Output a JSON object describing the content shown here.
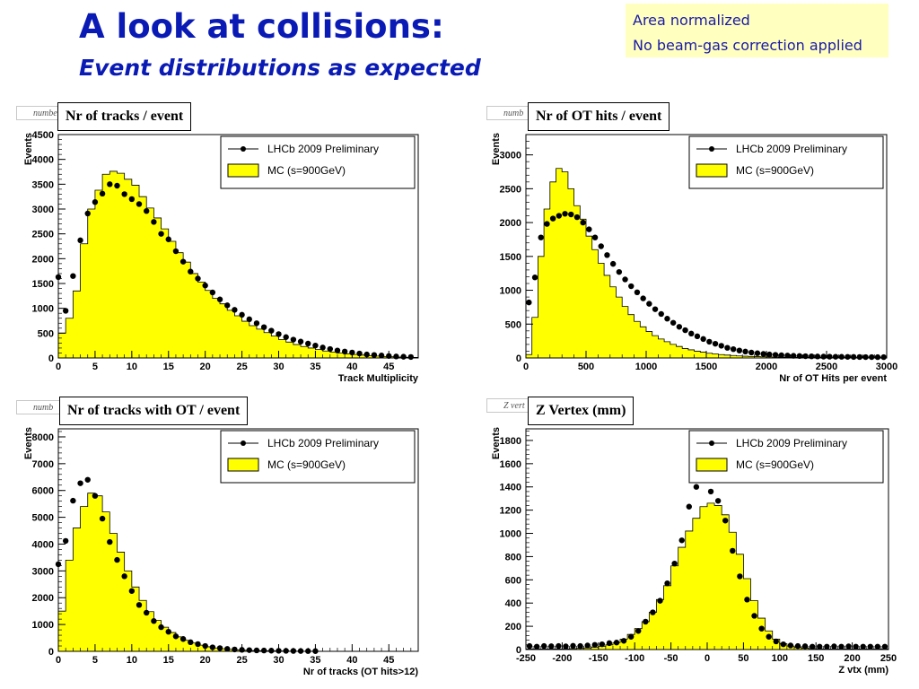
{
  "slide": {
    "title": "A look at collisions:",
    "subtitle": "Event distributions as expected",
    "notes": [
      "Area normalized",
      "No beam-gas correction applied"
    ]
  },
  "colors": {
    "title": "#0a1ab4",
    "mc_fill": "#ffff00",
    "data_marker": "#000000",
    "note_bg": "#ffffc0"
  },
  "chart_data": [
    {
      "type": "bar",
      "panel_label": "Nr of tracks / event",
      "stat_tab": "number",
      "xlabel": "Track Multiplicity",
      "ylabel": "Events",
      "xlim": [
        0,
        49
      ],
      "ylim": [
        0,
        4500
      ],
      "xticks": [
        0,
        5,
        10,
        15,
        20,
        25,
        30,
        35,
        40,
        45
      ],
      "yticks": [
        0,
        500,
        1000,
        1500,
        2000,
        2500,
        3000,
        3500,
        4000,
        4500
      ],
      "legend_position": "top-right",
      "series": [
        {
          "name": "LHCb 2009 Preliminary",
          "kind": "markers",
          "x": [
            0,
            1,
            2,
            3,
            4,
            5,
            6,
            7,
            8,
            9,
            10,
            11,
            12,
            13,
            14,
            15,
            16,
            17,
            18,
            19,
            20,
            21,
            22,
            23,
            24,
            25,
            26,
            27,
            28,
            29,
            30,
            31,
            32,
            33,
            34,
            35,
            36,
            37,
            38,
            39,
            40,
            41,
            42,
            43,
            44,
            45,
            46,
            47,
            48
          ],
          "y": [
            1630,
            950,
            1650,
            2370,
            2910,
            3140,
            3310,
            3500,
            3470,
            3300,
            3200,
            3100,
            2960,
            2740,
            2500,
            2390,
            2150,
            1940,
            1740,
            1600,
            1460,
            1320,
            1180,
            1060,
            970,
            870,
            780,
            700,
            620,
            550,
            480,
            420,
            370,
            330,
            290,
            250,
            210,
            180,
            150,
            130,
            110,
            90,
            70,
            60,
            50,
            40,
            30,
            25,
            20
          ]
        },
        {
          "name": "MC (s=900GeV)",
          "kind": "histogram",
          "edges": [
            0,
            1,
            2,
            3,
            4,
            5,
            6,
            7,
            8,
            9,
            10,
            11,
            12,
            13,
            14,
            15,
            16,
            17,
            18,
            19,
            20,
            21,
            22,
            23,
            24,
            25,
            26,
            27,
            28,
            29,
            30,
            31,
            32,
            33,
            34,
            35,
            36,
            37,
            38,
            39,
            40,
            41,
            42,
            43,
            44,
            45,
            46,
            47,
            48,
            49
          ],
          "values": [
            500,
            800,
            1350,
            2300,
            3000,
            3380,
            3700,
            3760,
            3720,
            3600,
            3480,
            3250,
            3020,
            2820,
            2600,
            2350,
            2120,
            1930,
            1700,
            1530,
            1360,
            1200,
            1090,
            960,
            850,
            740,
            650,
            580,
            510,
            440,
            370,
            320,
            270,
            230,
            200,
            170,
            140,
            120,
            100,
            85,
            70,
            58,
            48,
            38,
            30,
            24,
            18,
            14,
            10
          ]
        }
      ]
    },
    {
      "type": "bar",
      "panel_label": "Nr of OT hits / event",
      "stat_tab": "numb",
      "xlabel": "Nr of OT Hits per event",
      "ylabel": "Events",
      "xlim": [
        0,
        3000
      ],
      "ylim": [
        0,
        3300
      ],
      "xticks": [
        0,
        500,
        1000,
        1500,
        2000,
        2500,
        3000
      ],
      "yticks": [
        0,
        500,
        1000,
        1500,
        2000,
        2500,
        3000
      ],
      "legend_position": "top-right",
      "series": [
        {
          "name": "LHCb 2009 Preliminary",
          "kind": "markers",
          "x": [
            25,
            75,
            125,
            175,
            225,
            275,
            325,
            375,
            425,
            475,
            525,
            575,
            625,
            675,
            725,
            775,
            825,
            875,
            925,
            975,
            1025,
            1075,
            1125,
            1175,
            1225,
            1275,
            1325,
            1375,
            1425,
            1475,
            1525,
            1575,
            1625,
            1675,
            1725,
            1775,
            1825,
            1875,
            1925,
            1975,
            2025,
            2075,
            2125,
            2175,
            2225,
            2275,
            2325,
            2375,
            2425,
            2475,
            2525,
            2575,
            2625,
            2675,
            2725,
            2775,
            2825,
            2875,
            2925,
            2975
          ],
          "y": [
            820,
            1190,
            1780,
            1980,
            2060,
            2100,
            2130,
            2120,
            2080,
            2000,
            1900,
            1780,
            1650,
            1520,
            1390,
            1270,
            1160,
            1060,
            970,
            880,
            800,
            720,
            650,
            580,
            520,
            460,
            410,
            360,
            320,
            280,
            240,
            210,
            180,
            150,
            130,
            110,
            95,
            80,
            70,
            60,
            52,
            46,
            40,
            36,
            32,
            29,
            26,
            24,
            22,
            20,
            19,
            18,
            17,
            16,
            15,
            14,
            13,
            13,
            12,
            12
          ]
        },
        {
          "name": "MC (s=900GeV)",
          "kind": "histogram",
          "edges": [
            0,
            50,
            100,
            150,
            200,
            250,
            300,
            350,
            400,
            450,
            500,
            550,
            600,
            650,
            700,
            750,
            800,
            850,
            900,
            950,
            1000,
            1050,
            1100,
            1150,
            1200,
            1250,
            1300,
            1350,
            1400,
            1450,
            1500,
            1550,
            1600,
            1650,
            1700,
            1750,
            1800,
            1850,
            1900,
            1950,
            2000,
            2050,
            2100,
            2150,
            2200,
            2250,
            2300,
            2350,
            2400,
            2450,
            2500,
            2550,
            2600,
            2650,
            2700,
            2750,
            2800,
            2850,
            2900,
            2950,
            3000
          ],
          "values": [
            50,
            600,
            1500,
            2200,
            2600,
            2800,
            2750,
            2500,
            2250,
            2050,
            1800,
            1600,
            1400,
            1220,
            1050,
            900,
            760,
            640,
            540,
            460,
            390,
            330,
            280,
            240,
            200,
            170,
            140,
            120,
            100,
            85,
            70,
            60,
            50,
            42,
            36,
            30,
            26,
            22,
            19,
            17,
            15,
            13,
            12,
            11,
            10,
            9,
            9,
            8,
            8,
            7,
            7,
            7,
            6,
            6,
            6,
            6,
            5,
            5,
            5,
            5
          ]
        }
      ]
    },
    {
      "type": "bar",
      "panel_label": "Nr of tracks with OT / event",
      "stat_tab": "numb",
      "xlabel": "Nr of tracks (OT hits>12)",
      "ylabel": "Events",
      "xlim": [
        0,
        49
      ],
      "ylim": [
        0,
        8300
      ],
      "xticks": [
        0,
        5,
        10,
        15,
        20,
        25,
        30,
        35,
        40,
        45
      ],
      "yticks": [
        0,
        1000,
        2000,
        3000,
        4000,
        5000,
        6000,
        7000,
        8000
      ],
      "legend_position": "top-right",
      "series": [
        {
          "name": "LHCb 2009 Preliminary",
          "kind": "markers",
          "x": [
            0,
            1,
            2,
            3,
            4,
            5,
            6,
            7,
            8,
            9,
            10,
            11,
            12,
            13,
            14,
            15,
            16,
            17,
            18,
            19,
            20,
            21,
            22,
            23,
            24,
            25,
            26,
            27,
            28,
            29,
            30,
            31,
            32,
            33,
            34,
            35
          ],
          "y": [
            3250,
            4120,
            5620,
            6270,
            6400,
            5800,
            4950,
            4080,
            3410,
            2800,
            2250,
            1730,
            1440,
            1130,
            900,
            730,
            560,
            460,
            340,
            270,
            200,
            150,
            120,
            90,
            70,
            55,
            45,
            35,
            30,
            25,
            20,
            18,
            15,
            12,
            10,
            8
          ]
        },
        {
          "name": "MC (s=900GeV)",
          "kind": "histogram",
          "edges": [
            0,
            1,
            2,
            3,
            4,
            5,
            6,
            7,
            8,
            9,
            10,
            11,
            12,
            13,
            14,
            15,
            16,
            17,
            18,
            19,
            20,
            21,
            22,
            23,
            24,
            25,
            26,
            27,
            28,
            29,
            30,
            31,
            32,
            33,
            34,
            35,
            36
          ],
          "values": [
            1500,
            3400,
            4600,
            5400,
            5900,
            5800,
            5200,
            4400,
            3700,
            3000,
            2400,
            1900,
            1480,
            1150,
            900,
            700,
            540,
            410,
            310,
            230,
            170,
            125,
            95,
            70,
            52,
            40,
            30,
            23,
            18,
            14,
            11,
            8,
            6,
            5,
            4,
            3
          ]
        }
      ]
    },
    {
      "type": "bar",
      "panel_label": "Z Vertex (mm)",
      "stat_tab": "Z vert",
      "xlabel": "Z vtx (mm)",
      "ylabel": "Events",
      "xlim": [
        -250,
        250
      ],
      "ylim": [
        0,
        1900
      ],
      "xticks": [
        -250,
        -200,
        -150,
        -100,
        -50,
        0,
        50,
        100,
        150,
        200,
        250
      ],
      "yticks": [
        0,
        200,
        400,
        600,
        800,
        1000,
        1200,
        1400,
        1600,
        1800
      ],
      "legend_position": "top-right",
      "series": [
        {
          "name": "LHCb 2009 Preliminary",
          "kind": "markers",
          "x": [
            -245,
            -235,
            -225,
            -215,
            -205,
            -195,
            -185,
            -175,
            -165,
            -155,
            -145,
            -135,
            -125,
            -115,
            -105,
            -95,
            -85,
            -75,
            -65,
            -55,
            -45,
            -35,
            -25,
            -15,
            -5,
            5,
            15,
            25,
            35,
            45,
            55,
            65,
            75,
            85,
            95,
            105,
            115,
            125,
            135,
            145,
            155,
            165,
            175,
            185,
            195,
            205,
            215,
            225,
            235,
            245
          ],
          "y": [
            30,
            25,
            30,
            28,
            30,
            27,
            32,
            30,
            35,
            40,
            45,
            55,
            60,
            75,
            110,
            160,
            240,
            320,
            420,
            570,
            740,
            940,
            1230,
            1400,
            1520,
            1360,
            1280,
            1110,
            850,
            630,
            430,
            290,
            180,
            110,
            70,
            45,
            35,
            30,
            28,
            25,
            25,
            25,
            27,
            25,
            27,
            25,
            25,
            25,
            25,
            25
          ]
        },
        {
          "name": "MC (s=900GeV)",
          "kind": "histogram",
          "edges": [
            -250,
            -240,
            -230,
            -220,
            -210,
            -200,
            -190,
            -180,
            -170,
            -160,
            -150,
            -140,
            -130,
            -120,
            -110,
            -100,
            -90,
            -80,
            -70,
            -60,
            -50,
            -40,
            -30,
            -20,
            -10,
            0,
            10,
            20,
            30,
            40,
            50,
            60,
            70,
            80,
            90,
            100,
            110,
            120,
            130,
            140,
            150,
            160,
            170,
            180,
            190,
            200,
            210,
            220,
            230,
            240,
            250
          ],
          "values": [
            5,
            5,
            5,
            5,
            5,
            6,
            8,
            10,
            14,
            20,
            28,
            40,
            60,
            90,
            130,
            180,
            240,
            320,
            430,
            550,
            720,
            880,
            1020,
            1130,
            1230,
            1260,
            1240,
            1160,
            1010,
            820,
            610,
            420,
            270,
            160,
            90,
            50,
            30,
            18,
            11,
            8,
            6,
            5,
            5,
            5,
            5,
            5,
            5,
            5,
            5,
            5
          ]
        }
      ]
    }
  ]
}
